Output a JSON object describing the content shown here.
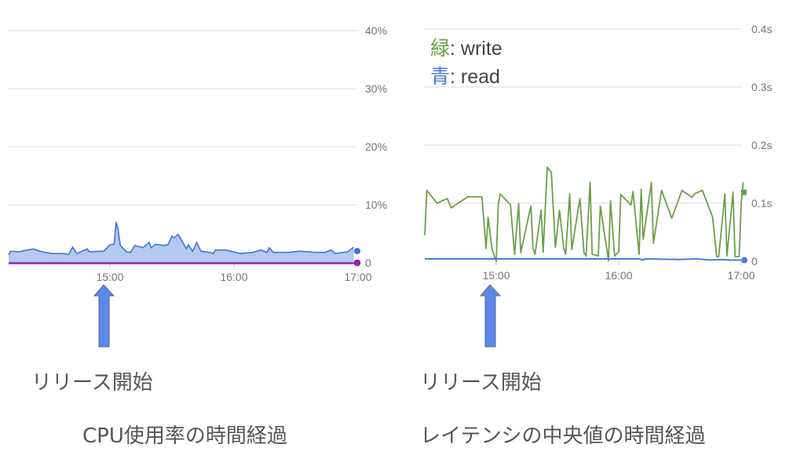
{
  "chart_data": [
    {
      "type": "area",
      "title": "CPU使用率の時間経過",
      "annotation": "リリース開始",
      "annotation_time": "15:00",
      "y_ticks": [
        "0",
        "10%",
        "20%",
        "30%",
        "40%"
      ],
      "y_tick_values": [
        0,
        10,
        20,
        30,
        40
      ],
      "x_ticks": [
        "15:00",
        "16:00",
        "17:00"
      ],
      "ylim": [
        0,
        40
      ],
      "xlim": [
        "14:11",
        "17:00"
      ],
      "y_axis_side": "right",
      "grid": true,
      "colors": {
        "cpu": "#3f73d9",
        "cpu_fill": "#b4c9ef",
        "baseline": "#8e24aa"
      },
      "series": [
        {
          "x": [
            "14:11",
            "14:12",
            "14:16",
            "14:23",
            "14:27",
            "14:32",
            "14:38",
            "14:40",
            "14:42",
            "14:44",
            "14:49",
            "14:50",
            "14:57",
            "15:00",
            "15:02",
            "15:03",
            "15:04",
            "15:05",
            "15:08",
            "15:10",
            "15:12",
            "15:16",
            "15:19",
            "15:20",
            "15:22",
            "15:26",
            "15:28",
            "15:30",
            "15:31",
            "15:33",
            "15:34",
            "15:37",
            "15:38",
            "15:40",
            "15:42",
            "15:44",
            "15:48",
            "15:50",
            "15:51",
            "15:56",
            "16:01",
            "16:03",
            "16:09",
            "16:13",
            "16:16",
            "16:17",
            "16:19",
            "16:26",
            "16:32",
            "16:39",
            "16:44",
            "16:47",
            "16:49",
            "16:55",
            "16:58"
          ],
          "y": [
            1.4,
            2.0,
            1.9,
            2.4,
            1.9,
            1.6,
            1.6,
            1.4,
            2.7,
            1.6,
            2.4,
            1.9,
            2.0,
            3.1,
            3.2,
            7.0,
            5.7,
            3.0,
            1.9,
            1.8,
            3.0,
            2.6,
            3.5,
            2.6,
            3.2,
            3.0,
            3.1,
            4.6,
            4.3,
            4.9,
            4.3,
            2.4,
            3.1,
            2.0,
            3.5,
            2.0,
            1.8,
            1.6,
            2.2,
            2.2,
            1.8,
            1.6,
            1.8,
            2.2,
            1.8,
            2.6,
            1.8,
            1.8,
            2.0,
            1.8,
            1.8,
            2.2,
            1.6,
            1.9,
            2.7
          ]
        },
        {
          "x": [
            "14:11",
            "16:58"
          ],
          "y": [
            0,
            0
          ]
        }
      ]
    },
    {
      "type": "line",
      "title": "レイテンシの中央値の時間経過",
      "annotation": "リリース開始",
      "annotation_time": "15:00",
      "legend": [
        {
          "key": "緑",
          "sep": ": ",
          "label": "write",
          "color": "#6a9f4a"
        },
        {
          "key": "青",
          "sep": ": ",
          "label": "read",
          "color": "#4a7bd8"
        }
      ],
      "legend_placement": "top-left",
      "y_ticks": [
        "0",
        "0.1s",
        "0.2s",
        "0.3s",
        "0.4s"
      ],
      "y_tick_values": [
        0,
        0.1,
        0.2,
        0.3,
        0.4
      ],
      "x_ticks": [
        "15:00",
        "16:00",
        "17:00"
      ],
      "ylim": [
        0,
        0.4
      ],
      "xlim": [
        "14:25",
        "17:00"
      ],
      "y_axis_side": "right",
      "grid": true,
      "series": [
        {
          "name": "write",
          "color": "#6a9f4a",
          "x": [
            "14:25",
            "14:26",
            "14:31",
            "14:36",
            "14:38",
            "14:46",
            "14:53",
            "14:55",
            "14:56",
            "14:58",
            "15:00",
            "15:01",
            "15:02",
            "15:07",
            "15:09",
            "15:11",
            "15:12",
            "15:17",
            "15:18",
            "15:19",
            "15:22",
            "15:23",
            "15:25",
            "15:27",
            "15:29",
            "15:31",
            "15:33",
            "15:34",
            "15:36",
            "15:37",
            "15:41",
            "15:43",
            "15:44",
            "15:46",
            "15:47",
            "15:50",
            "15:51",
            "15:55",
            "15:56",
            "15:58",
            "16:00",
            "16:01",
            "16:06",
            "16:07",
            "16:10",
            "16:11",
            "16:12",
            "16:16",
            "16:17",
            "16:21",
            "16:26",
            "16:31",
            "16:36",
            "16:37",
            "16:41",
            "16:46",
            "16:48",
            "16:49",
            "16:52",
            "16:53",
            "16:56",
            "16:57",
            "16:59",
            "17:00",
            "17:01"
          ],
          "y": [
            0.045,
            0.122,
            0.1,
            0.108,
            0.092,
            0.111,
            0.111,
            0.022,
            0.076,
            0.02,
            0.0,
            0.097,
            0.116,
            0.097,
            0.012,
            0.099,
            0.015,
            0.095,
            0.022,
            0.012,
            0.088,
            0.016,
            0.162,
            0.153,
            0.024,
            0.088,
            0.024,
            0.012,
            0.116,
            0.02,
            0.108,
            0.015,
            0.009,
            0.136,
            0.012,
            0.009,
            0.095,
            0.001,
            0.104,
            0.009,
            0.016,
            0.115,
            0.097,
            0.12,
            0.012,
            0.124,
            0.038,
            0.136,
            0.031,
            0.122,
            0.074,
            0.122,
            0.11,
            0.116,
            0.122,
            0.076,
            0.008,
            0.008,
            0.116,
            0.009,
            0.119,
            0.008,
            0.008,
            0.099,
            0.136
          ]
        },
        {
          "name": "read",
          "color": "#4a7bd8",
          "x": [
            "14:25",
            "16:10",
            "16:12",
            "16:13",
            "16:30",
            "16:38",
            "16:45",
            "16:50",
            "16:55",
            "17:00"
          ],
          "y": [
            0.004,
            0.004,
            0.002,
            0.004,
            0.003,
            0.004,
            0.002,
            0.003,
            0.002,
            0.002
          ]
        }
      ]
    }
  ]
}
